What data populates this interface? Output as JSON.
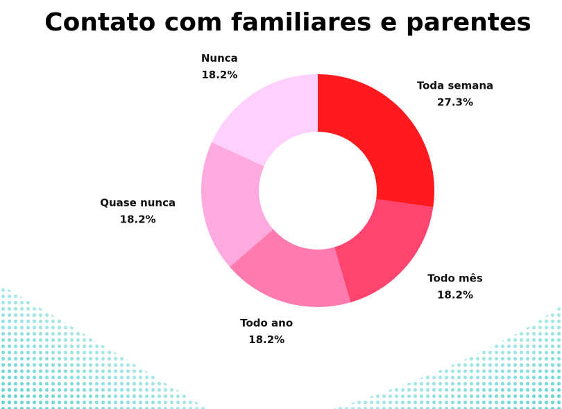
{
  "chart_data": {
    "type": "donut",
    "title": "Contato com familiares e parentes",
    "categories": [
      "Toda semana",
      "Todo mês",
      "Todo ano",
      "Quase nunca",
      "Nunca"
    ],
    "values": [
      27.3,
      18.2,
      18.2,
      18.2,
      18.2
    ],
    "value_labels": [
      "27.3%",
      "18.2%",
      "18.2%",
      "18.2%",
      "18.2%"
    ],
    "colors": [
      "#ff1a1f",
      "#ff4470",
      "#ff7aae",
      "#ffaadf",
      "#ffd0fb"
    ]
  }
}
